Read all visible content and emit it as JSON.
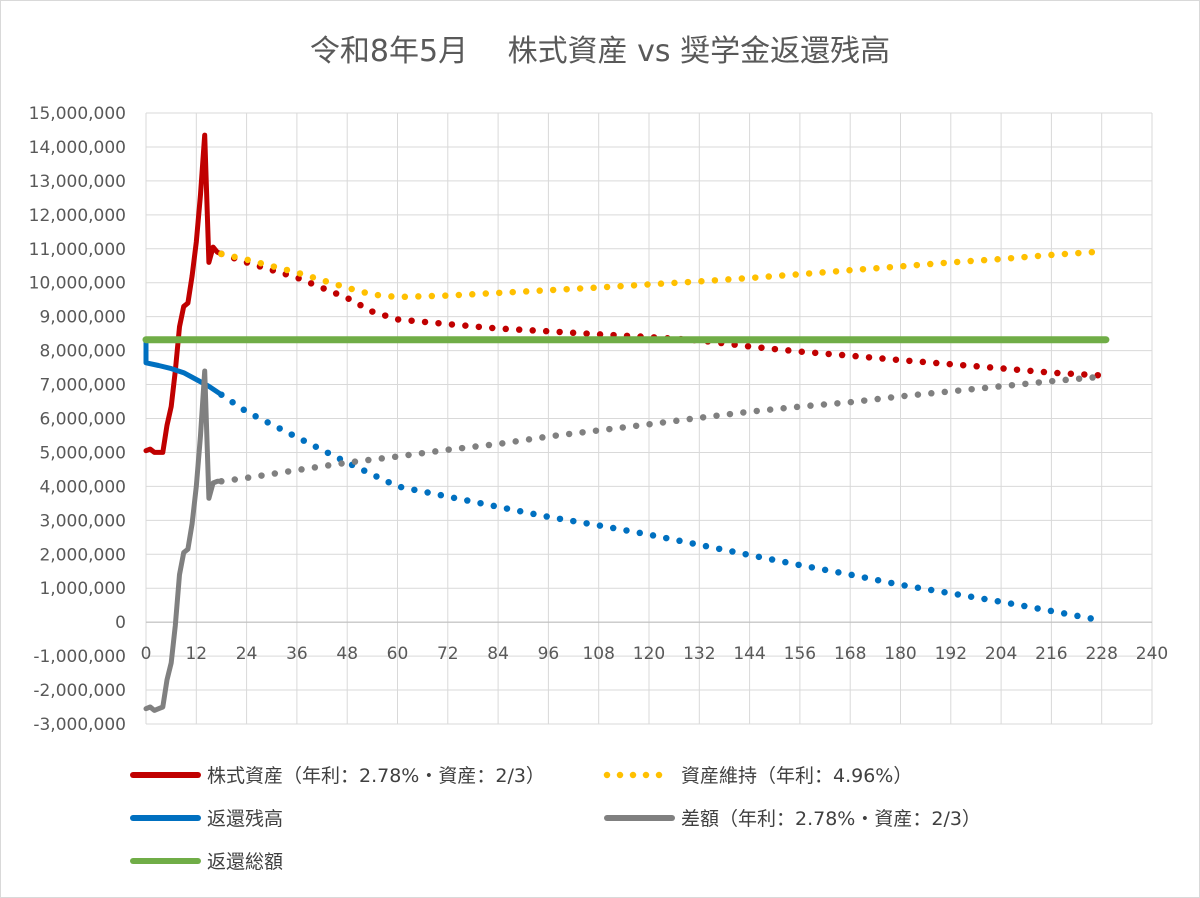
{
  "chart_data": {
    "type": "line",
    "title": "令和8年5月　 株式資産 vs 奨学金返還残高",
    "xlim": [
      0,
      240
    ],
    "x_ticks": [
      "0",
      "12",
      "24",
      "36",
      "48",
      "60",
      "72",
      "84",
      "96",
      "108",
      "120",
      "132",
      "144",
      "156",
      "168",
      "180",
      "192",
      "204",
      "216",
      "228",
      "240"
    ],
    "ylim": [
      -3000000,
      15000000
    ],
    "y_ticks": [
      "-3,000,000",
      "-2,000,000",
      "-1,000,000",
      "0",
      "1,000,000",
      "2,000,000",
      "3,000,000",
      "4,000,000",
      "5,000,000",
      "6,000,000",
      "7,000,000",
      "8,000,000",
      "9,000,000",
      "10,000,000",
      "11,000,000",
      "12,000,000",
      "13,000,000",
      "14,000,000",
      "15,000,000"
    ],
    "grid": true,
    "legend_position": "bottom",
    "series": [
      {
        "name": "株式資産（年利：2.78%・資産：2/3）",
        "color": "#c00000",
        "style": "solid",
        "points": [
          [
            0,
            5050000
          ],
          [
            1,
            5100000
          ],
          [
            2,
            5000000
          ],
          [
            3,
            5000000
          ],
          [
            4,
            5000000
          ],
          [
            5,
            5800000
          ],
          [
            6,
            6350000
          ],
          [
            7,
            7400000
          ],
          [
            8,
            8700000
          ],
          [
            9,
            9300000
          ],
          [
            10,
            9400000
          ],
          [
            11,
            10200000
          ],
          [
            12,
            11200000
          ],
          [
            13,
            12600000
          ],
          [
            14,
            14350000
          ],
          [
            15,
            10600000
          ],
          [
            16,
            11050000
          ],
          [
            17,
            10900000
          ],
          [
            18,
            10850000
          ]
        ]
      },
      {
        "name": "株式資産（年利：2.78%・資産：2/3）",
        "color": "#c00000",
        "style": "dotted",
        "points": [
          [
            18,
            10850000
          ],
          [
            24,
            10600000
          ],
          [
            36,
            10150000
          ],
          [
            48,
            9550000
          ],
          [
            54,
            9150000
          ],
          [
            60,
            8920000
          ],
          [
            72,
            8780000
          ],
          [
            84,
            8650000
          ],
          [
            96,
            8570000
          ],
          [
            108,
            8480000
          ],
          [
            120,
            8400000
          ],
          [
            132,
            8300000
          ],
          [
            144,
            8120000
          ],
          [
            156,
            7970000
          ],
          [
            168,
            7850000
          ],
          [
            180,
            7720000
          ],
          [
            192,
            7600000
          ],
          [
            204,
            7480000
          ],
          [
            216,
            7350000
          ],
          [
            228,
            7270000
          ]
        ]
      },
      {
        "name": "資産維持（年利：4.96%）",
        "color": "#ffc000",
        "style": "dotted",
        "points": [
          [
            18,
            10850000
          ],
          [
            24,
            10680000
          ],
          [
            36,
            10300000
          ],
          [
            48,
            9850000
          ],
          [
            54,
            9650000
          ],
          [
            60,
            9580000
          ],
          [
            72,
            9620000
          ],
          [
            84,
            9700000
          ],
          [
            96,
            9780000
          ],
          [
            108,
            9860000
          ],
          [
            120,
            9950000
          ],
          [
            132,
            10040000
          ],
          [
            144,
            10140000
          ],
          [
            156,
            10250000
          ],
          [
            168,
            10370000
          ],
          [
            180,
            10480000
          ],
          [
            192,
            10600000
          ],
          [
            204,
            10700000
          ],
          [
            216,
            10820000
          ],
          [
            228,
            10920000
          ]
        ]
      },
      {
        "name": "返還残高",
        "color": "#0070c0",
        "style": "solid",
        "points": [
          [
            0,
            8300000
          ],
          [
            0,
            7640000
          ],
          [
            3,
            7560000
          ],
          [
            6,
            7470000
          ],
          [
            9,
            7350000
          ],
          [
            12,
            7150000
          ],
          [
            15,
            6950000
          ],
          [
            18,
            6700000
          ]
        ]
      },
      {
        "name": "返還残高",
        "color": "#0070c0",
        "style": "dotted",
        "points": [
          [
            18,
            6700000
          ],
          [
            24,
            6200000
          ],
          [
            36,
            5450000
          ],
          [
            48,
            4700000
          ],
          [
            60,
            4000000
          ],
          [
            72,
            3700000
          ],
          [
            84,
            3400000
          ],
          [
            96,
            3100000
          ],
          [
            108,
            2850000
          ],
          [
            120,
            2580000
          ],
          [
            132,
            2280000
          ],
          [
            144,
            1980000
          ],
          [
            156,
            1680000
          ],
          [
            168,
            1400000
          ],
          [
            180,
            1100000
          ],
          [
            192,
            850000
          ],
          [
            204,
            600000
          ],
          [
            216,
            330000
          ],
          [
            228,
            50000
          ]
        ]
      },
      {
        "name": "差額（年利：2.78%・資産：2/3）",
        "color": "#808080",
        "style": "solid",
        "points": [
          [
            0,
            -2550000
          ],
          [
            1,
            -2500000
          ],
          [
            2,
            -2600000
          ],
          [
            3,
            -2550000
          ],
          [
            4,
            -2500000
          ],
          [
            5,
            -1700000
          ],
          [
            6,
            -1200000
          ],
          [
            7,
            -100000
          ],
          [
            8,
            1400000
          ],
          [
            9,
            2050000
          ],
          [
            10,
            2150000
          ],
          [
            11,
            2900000
          ],
          [
            12,
            4000000
          ],
          [
            13,
            5500000
          ],
          [
            14,
            7400000
          ],
          [
            15,
            3650000
          ],
          [
            16,
            4100000
          ],
          [
            17,
            4150000
          ],
          [
            18,
            4150000
          ]
        ]
      },
      {
        "name": "差額（年利：2.78%・資産：2/3）",
        "color": "#808080",
        "style": "dotted",
        "points": [
          [
            18,
            4150000
          ],
          [
            24,
            4250000
          ],
          [
            36,
            4480000
          ],
          [
            48,
            4700000
          ],
          [
            60,
            4880000
          ],
          [
            72,
            5080000
          ],
          [
            84,
            5250000
          ],
          [
            96,
            5470000
          ],
          [
            108,
            5650000
          ],
          [
            120,
            5830000
          ],
          [
            132,
            6020000
          ],
          [
            144,
            6200000
          ],
          [
            156,
            6350000
          ],
          [
            168,
            6480000
          ],
          [
            180,
            6650000
          ],
          [
            192,
            6800000
          ],
          [
            204,
            6950000
          ],
          [
            216,
            7100000
          ],
          [
            228,
            7230000
          ]
        ]
      },
      {
        "name": "返還総額",
        "color": "#70ad47",
        "style": "solid",
        "points": [
          [
            0,
            8320000
          ],
          [
            229,
            8320000
          ]
        ]
      }
    ],
    "legend": [
      {
        "label": "株式資産（年利：2.78%・資産：2/3）",
        "color": "#c00000",
        "style": "solid"
      },
      {
        "label": "資産維持（年利：4.96%）",
        "color": "#ffc000",
        "style": "dotted"
      },
      {
        "label": "返還残高",
        "color": "#0070c0",
        "style": "solid"
      },
      {
        "label": "差額（年利：2.78%・資産：2/3）",
        "color": "#808080",
        "style": "solid"
      },
      {
        "label": "返還総額",
        "color": "#70ad47",
        "style": "solid"
      }
    ]
  }
}
